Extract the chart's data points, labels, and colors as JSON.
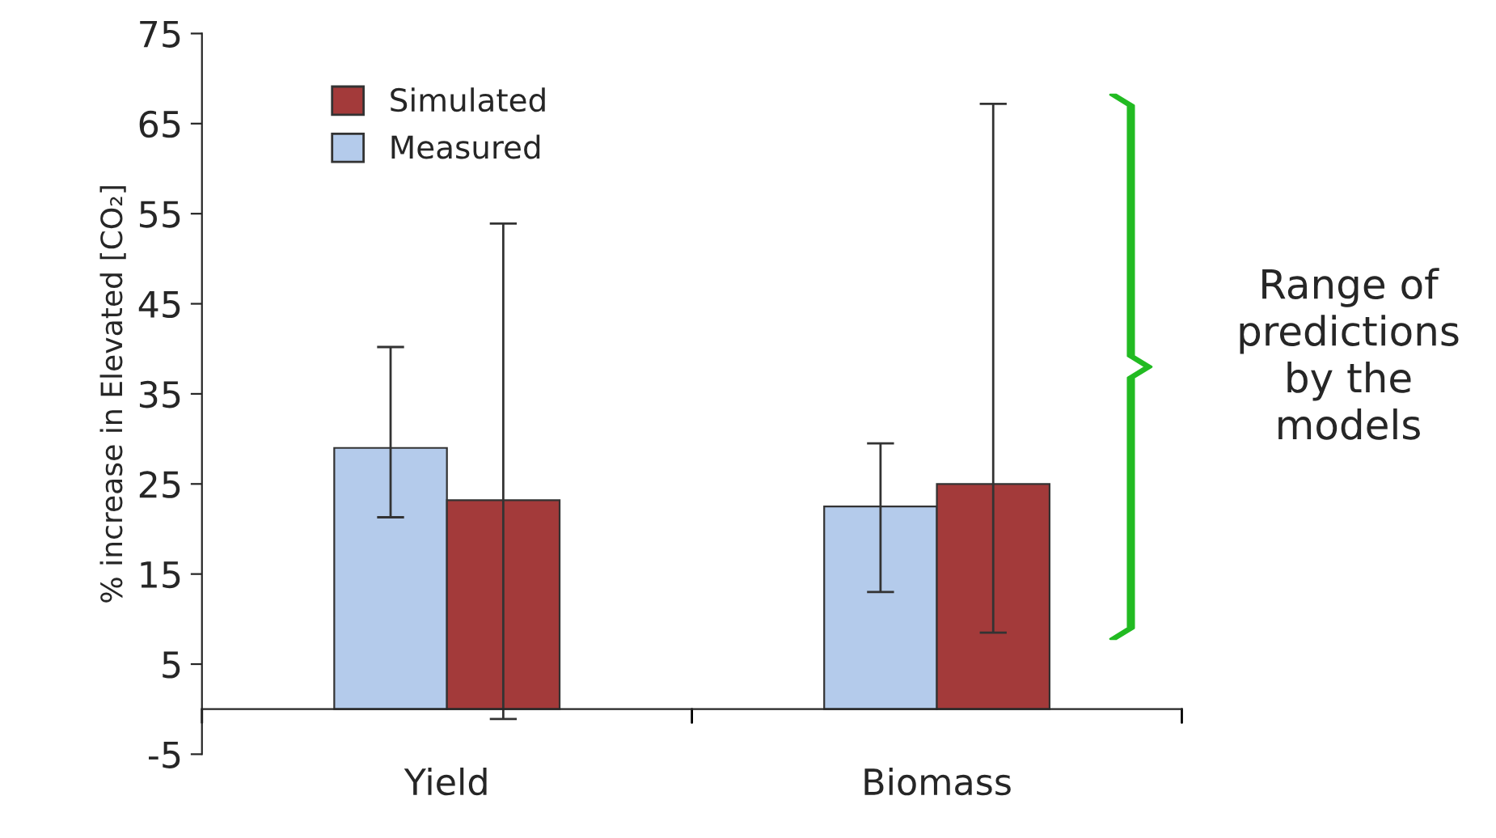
{
  "chart_data": {
    "type": "bar",
    "ylabel": "% increase in Elevated [CO₂]",
    "categories": [
      "Yield",
      "Biomass"
    ],
    "series": [
      {
        "name": "Measured",
        "color": "#b4cbeb",
        "values": [
          29,
          22.5
        ],
        "errors": [
          [
            21.3,
            40.2
          ],
          [
            13,
            29.5
          ]
        ]
      },
      {
        "name": "Simulated",
        "color": "#a33a3a",
        "values": [
          23.2,
          25
        ],
        "errors": [
          [
            -1.1,
            53.9
          ],
          [
            8.5,
            67.2
          ]
        ]
      }
    ],
    "ylim": [
      -5,
      75
    ],
    "yticks": [
      -5,
      5,
      15,
      25,
      35,
      45,
      55,
      65,
      75
    ],
    "legend": "top left",
    "grid": false,
    "annotations": [
      "Range of predictions by the models"
    ]
  }
}
